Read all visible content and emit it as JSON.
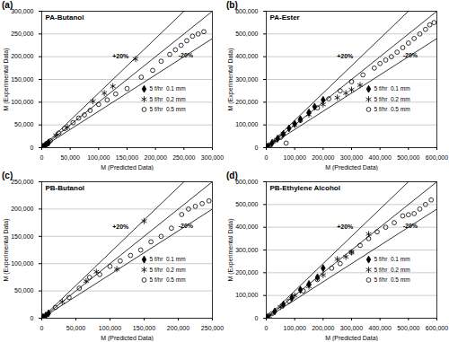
{
  "chart_data": [
    {
      "type": "scatter",
      "panel": "(a)",
      "title": "PA-Butanol",
      "xlabel": "M (Predicted Data)",
      "ylabel": "M (Experimental Data)",
      "xlim": [
        0,
        300000
      ],
      "ylim": [
        0,
        300000
      ],
      "xticks": [
        0,
        {
          "value": 50000,
          "label": "50,000"
        },
        {
          "value": 100000,
          "label": "100,000"
        },
        {
          "value": 150000,
          "label": "150,000"
        },
        {
          "value": 200000,
          "label": "200,000"
        },
        {
          "value": 250000,
          "label": "250,000"
        },
        {
          "value": 300000,
          "label": "300,000"
        }
      ],
      "yticks": [
        0,
        {
          "value": 50000,
          "label": "50,000"
        },
        {
          "value": 100000,
          "label": "100,000"
        },
        {
          "value": 150000,
          "label": "150,000"
        },
        {
          "value": 200000,
          "label": "200,000"
        },
        {
          "value": 250000,
          "label": "250,000"
        },
        {
          "value": 300000,
          "label": "300,000"
        }
      ],
      "grid": "y",
      "legend": "right",
      "reference_lines": [
        {
          "label": "+20%",
          "slope": 1.2
        },
        {
          "slope": 1
        },
        {
          "label": "-20%",
          "slope": 0.8
        }
      ],
      "series": [
        {
          "name": "5 f/hr  0.1 mm",
          "color": "#000000",
          "marker": "diamond",
          "values": [
            [
              2000,
              2000
            ],
            [
              5000,
              4000
            ],
            [
              8000,
              7000
            ],
            [
              12000,
              11000
            ]
          ]
        },
        {
          "name": "5 f/hr  0.2 mm",
          "color": "#000000",
          "marker": "asterisk",
          "values": [
            [
              3000,
              3000
            ],
            [
              10000,
              10000
            ],
            [
              25000,
              27000
            ],
            [
              45000,
              45000
            ],
            [
              90000,
              102000
            ],
            [
              110000,
              120000
            ],
            [
              125000,
              135000
            ],
            [
              165000,
              195000
            ]
          ]
        },
        {
          "name": "5 f/hr  0.5 mm",
          "color": "#000000",
          "marker": "circle",
          "values": [
            [
              1000,
              1000
            ],
            [
              15000,
              15000
            ],
            [
              30000,
              32000
            ],
            [
              40000,
              42000
            ],
            [
              55000,
              55000
            ],
            [
              65000,
              65000
            ],
            [
              75000,
              72000
            ],
            [
              85000,
              82000
            ],
            [
              100000,
              95000
            ],
            [
              115000,
              105000
            ],
            [
              130000,
              118000
            ],
            [
              150000,
              130000
            ],
            [
              175000,
              155000
            ],
            [
              195000,
              170000
            ],
            [
              210000,
              190000
            ],
            [
              225000,
              205000
            ],
            [
              235000,
              215000
            ],
            [
              245000,
              225000
            ],
            [
              255000,
              235000
            ],
            [
              265000,
              245000
            ],
            [
              275000,
              250000
            ],
            [
              285000,
              255000
            ]
          ]
        }
      ]
    },
    {
      "type": "scatter",
      "panel": "(b)",
      "title": "PA-Ester",
      "xlabel": "M (Predicted Data)",
      "ylabel": "M (Experimental Data)",
      "xlim": [
        0,
        600000
      ],
      "ylim": [
        0,
        600000
      ],
      "xticks": [
        0,
        {
          "value": 100000,
          "label": "100,000"
        },
        {
          "value": 200000,
          "label": "200,000"
        },
        {
          "value": 300000,
          "label": "300,000"
        },
        {
          "value": 400000,
          "label": "400,000"
        },
        {
          "value": 500000,
          "label": "500,000"
        },
        {
          "value": 600000,
          "label": "600,000"
        }
      ],
      "yticks": [
        0,
        {
          "value": 100000,
          "label": "100,000"
        },
        {
          "value": 200000,
          "label": "200,000"
        },
        {
          "value": 300000,
          "label": "300,000"
        },
        {
          "value": 400000,
          "label": "400,000"
        },
        {
          "value": 500000,
          "label": "500,000"
        },
        {
          "value": 600000,
          "label": "600,000"
        }
      ],
      "grid": "y",
      "legend": "right",
      "reference_lines": [
        {
          "label": "+20%",
          "slope": 1.2
        },
        {
          "slope": 1
        },
        {
          "label": "-20%",
          "slope": 0.8
        }
      ],
      "series": [
        {
          "name": "5 f/hr  0.1 mm",
          "color": "#000000",
          "marker": "diamond",
          "values": [
            [
              5000,
              5000
            ],
            [
              20000,
              20000
            ],
            [
              40000,
              40000
            ],
            [
              60000,
              60000
            ],
            [
              80000,
              85000
            ],
            [
              100000,
              105000
            ],
            [
              120000,
              125000
            ],
            [
              150000,
              155000
            ],
            [
              170000,
              180000
            ],
            [
              200000,
              210000
            ]
          ]
        },
        {
          "name": "5 f/hr  0.2 mm",
          "color": "#000000",
          "marker": "asterisk",
          "values": [
            [
              10000,
              10000
            ],
            [
              30000,
              30000
            ],
            [
              60000,
              62000
            ],
            [
              100000,
              100000
            ],
            [
              150000,
              145000
            ],
            [
              200000,
              190000
            ],
            [
              250000,
              220000
            ],
            [
              280000,
              240000
            ],
            [
              300000,
              255000
            ],
            [
              330000,
              275000
            ]
          ]
        },
        {
          "name": "5 f/hr  0.5 mm",
          "color": "#000000",
          "marker": "circle",
          "values": [
            [
              10000,
              8000
            ],
            [
              50000,
              45000
            ],
            [
              70000,
              20000
            ],
            [
              120000,
              120000
            ],
            [
              180000,
              175000
            ],
            [
              220000,
              215000
            ],
            [
              260000,
              250000
            ],
            [
              300000,
              290000
            ],
            [
              340000,
              320000
            ],
            [
              380000,
              350000
            ],
            [
              400000,
              370000
            ],
            [
              420000,
              385000
            ],
            [
              440000,
              400000
            ],
            [
              460000,
              420000
            ],
            [
              480000,
              440000
            ],
            [
              500000,
              460000
            ],
            [
              520000,
              480000
            ],
            [
              540000,
              500000
            ],
            [
              560000,
              520000
            ],
            [
              575000,
              540000
            ],
            [
              590000,
              550000
            ]
          ]
        }
      ]
    },
    {
      "type": "scatter",
      "panel": "(c)",
      "title": "PB-Butanol",
      "xlabel": "M (Predicted Data)",
      "ylabel": "M (Experimental Data)",
      "xlim": [
        0,
        250000
      ],
      "ylim": [
        0,
        250000
      ],
      "xticks": [
        0,
        {
          "value": 50000,
          "label": "50,000"
        },
        {
          "value": 100000,
          "label": "100,000"
        },
        {
          "value": 150000,
          "label": "150,000"
        },
        {
          "value": 200000,
          "label": "200,000"
        },
        {
          "value": 250000,
          "label": "250,000"
        }
      ],
      "yticks": [
        0,
        {
          "value": 50000,
          "label": "50,000"
        },
        {
          "value": 100000,
          "label": "100,000"
        },
        {
          "value": 150000,
          "label": "150,000"
        },
        {
          "value": 200000,
          "label": "200,000"
        },
        {
          "value": 250000,
          "label": "250,000"
        }
      ],
      "grid": "y",
      "legend": "right",
      "reference_lines": [
        {
          "label": "+20%",
          "slope": 1.2
        },
        {
          "slope": 1
        },
        {
          "label": "-20%",
          "slope": 0.8
        }
      ],
      "series": [
        {
          "name": "5 f/hr  0.1 mm",
          "color": "#000000",
          "marker": "diamond",
          "values": [
            [
              2000,
              2000
            ],
            [
              6000,
              5000
            ],
            [
              10000,
              9000
            ]
          ]
        },
        {
          "name": "5 f/hr  0.2 mm",
          "color": "#000000",
          "marker": "asterisk",
          "values": [
            [
              5000,
              5000
            ],
            [
              30000,
              30000
            ],
            [
              65000,
              68000
            ],
            [
              80000,
              85000
            ],
            [
              110000,
              90000
            ],
            [
              150000,
              178000
            ]
          ]
        },
        {
          "name": "5 f/hr  0.5 mm",
          "color": "#000000",
          "marker": "circle",
          "values": [
            [
              1000,
              1000
            ],
            [
              20000,
              20000
            ],
            [
              40000,
              38000
            ],
            [
              55000,
              55000
            ],
            [
              70000,
              75000
            ],
            [
              85000,
              80000
            ],
            [
              100000,
              95000
            ],
            [
              115000,
              105000
            ],
            [
              130000,
              115000
            ],
            [
              145000,
              125000
            ],
            [
              160000,
              140000
            ],
            [
              175000,
              150000
            ],
            [
              190000,
              165000
            ],
            [
              205000,
              190000
            ],
            [
              215000,
              200000
            ],
            [
              225000,
              205000
            ],
            [
              235000,
              210000
            ],
            [
              245000,
              215000
            ]
          ]
        }
      ]
    },
    {
      "type": "scatter",
      "panel": "(d)",
      "title": "PB-Ethylene Alcohol",
      "xlabel": "M (Predicted Data)",
      "ylabel": "M (Experimental Data)",
      "xlim": [
        0,
        600000
      ],
      "ylim": [
        0,
        600000
      ],
      "xticks": [
        0,
        {
          "value": 100000,
          "label": "100,000"
        },
        {
          "value": 200000,
          "label": "200,000"
        },
        {
          "value": 300000,
          "label": "300,000"
        },
        {
          "value": 400000,
          "label": "400,000"
        },
        {
          "value": 500000,
          "label": "500,000"
        },
        {
          "value": 600000,
          "label": "600,000"
        }
      ],
      "yticks": [
        0,
        {
          "value": 100000,
          "label": "100,000"
        },
        {
          "value": 200000,
          "label": "200,000"
        },
        {
          "value": 300000,
          "label": "300,000"
        },
        {
          "value": 400000,
          "label": "400,000"
        },
        {
          "value": 500000,
          "label": "500,000"
        },
        {
          "value": 600000,
          "label": "600,000"
        }
      ],
      "grid": "y",
      "legend": "right",
      "reference_lines": [
        {
          "label": "+20%",
          "slope": 1.2
        },
        {
          "slope": 1
        },
        {
          "label": "-20%",
          "slope": 0.8
        }
      ],
      "series": [
        {
          "name": "5 f/hr  0.1 mm",
          "color": "#000000",
          "marker": "diamond",
          "values": [
            [
              5000,
              5000
            ],
            [
              30000,
              30000
            ],
            [
              60000,
              60000
            ],
            [
              90000,
              90000
            ],
            [
              120000,
              125000
            ],
            [
              150000,
              150000
            ],
            [
              180000,
              180000
            ],
            [
              200000,
              220000
            ]
          ]
        },
        {
          "name": "5 f/hr  0.2 mm",
          "color": "#000000",
          "marker": "asterisk",
          "values": [
            [
              10000,
              10000
            ],
            [
              50000,
              50000
            ],
            [
              100000,
              100000
            ],
            [
              150000,
              140000
            ],
            [
              200000,
              190000
            ],
            [
              250000,
              260000
            ],
            [
              280000,
              270000
            ],
            [
              300000,
              290000
            ],
            [
              360000,
              370000
            ]
          ]
        },
        {
          "name": "5 f/hr  0.5 mm",
          "color": "#000000",
          "marker": "circle",
          "values": [
            [
              20000,
              20000
            ],
            [
              80000,
              75000
            ],
            [
              130000,
              120000
            ],
            [
              180000,
              170000
            ],
            [
              230000,
              220000
            ],
            [
              260000,
              240000
            ],
            [
              300000,
              290000
            ],
            [
              330000,
              320000
            ],
            [
              360000,
              350000
            ],
            [
              390000,
              380000
            ],
            [
              420000,
              400000
            ],
            [
              450000,
              420000
            ],
            [
              480000,
              450000
            ],
            [
              500000,
              455000
            ],
            [
              520000,
              460000
            ],
            [
              540000,
              480000
            ],
            [
              560000,
              500000
            ],
            [
              580000,
              520000
            ]
          ]
        }
      ]
    }
  ]
}
